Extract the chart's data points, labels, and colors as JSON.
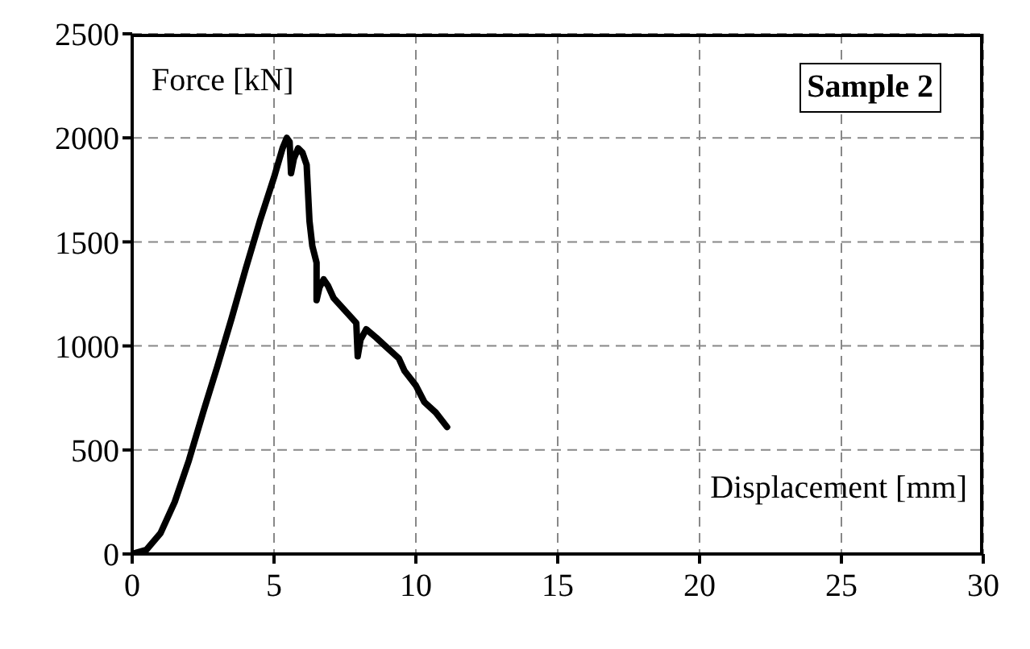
{
  "chart_data": {
    "type": "line",
    "title": "Sample 2",
    "xlabel": "Displacement [mm]",
    "ylabel": "Force [kN]",
    "x": [
      0,
      0.5,
      1,
      1.5,
      2,
      2.5,
      3,
      3.5,
      4,
      4.5,
      5,
      5.3,
      5.45,
      5.55,
      5.6,
      5.7,
      5.85,
      6.0,
      6.15,
      6.25,
      6.35,
      6.5,
      6.5,
      6.6,
      6.75,
      6.9,
      7.1,
      7.5,
      7.9,
      7.95,
      8.05,
      8.25,
      8.6,
      9,
      9.4,
      9.6,
      10,
      10.3,
      10.7,
      11.1
    ],
    "series": [
      {
        "color": "#000000",
        "values": [
          0,
          20,
          100,
          250,
          450,
          680,
          900,
          1130,
          1370,
          1600,
          1810,
          1950,
          2000,
          1980,
          1830,
          1900,
          1950,
          1930,
          1870,
          1600,
          1480,
          1400,
          1220,
          1280,
          1320,
          1290,
          1230,
          1170,
          1110,
          950,
          1030,
          1080,
          1040,
          990,
          940,
          880,
          810,
          730,
          680,
          610
        ]
      }
    ],
    "xlim": [
      0,
      30
    ],
    "xticks": [
      0,
      5,
      10,
      15,
      20,
      25,
      30
    ],
    "ylim": [
      0,
      2500
    ],
    "yticks": [
      0,
      500,
      1000,
      1500,
      2000,
      2500
    ],
    "grid": true,
    "legend": false,
    "marker": "none",
    "line_style": "solid"
  }
}
